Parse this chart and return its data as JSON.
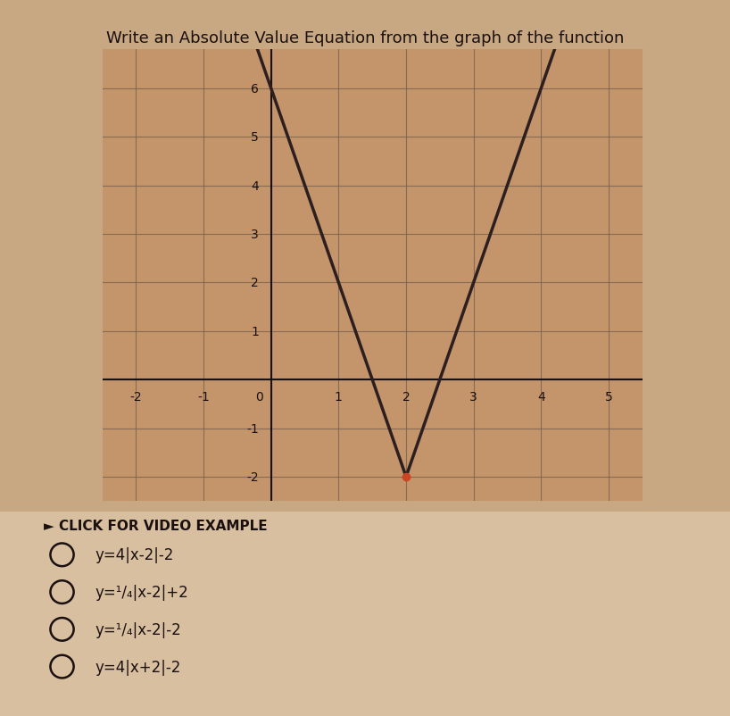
{
  "title": "Write an Absolute Value Equation from the graph of the function",
  "title_fontsize": 13,
  "xlim": [
    -2.5,
    5.5
  ],
  "ylim": [
    -2.5,
    6.8
  ],
  "xticks": [
    -2,
    -1,
    0,
    1,
    2,
    3,
    4,
    5
  ],
  "yticks": [
    -2,
    -1,
    0,
    1,
    2,
    3,
    4,
    5,
    6
  ],
  "vertex_x": 2,
  "vertex_y": -2,
  "slope": 4,
  "function_color": "#2d1f1f",
  "grid_color": "#7a6050",
  "axis_color": "#1a1010",
  "bg_color": "#c8a882",
  "plot_bg_color": "#c4956a",
  "text_color": "#1a1010",
  "choices": [
    "y=4|x-2|-2",
    "y=¹/₄|x-2|+2",
    "y=¹/₄|x-2|-2",
    "y=4|x+2|-2"
  ],
  "click_text": "► CLICK FOR VIDEO EXAMPLE",
  "line_width": 2.5,
  "vertex_dot_color": "#cc4422",
  "lighter_bg": "#d8bfa0"
}
